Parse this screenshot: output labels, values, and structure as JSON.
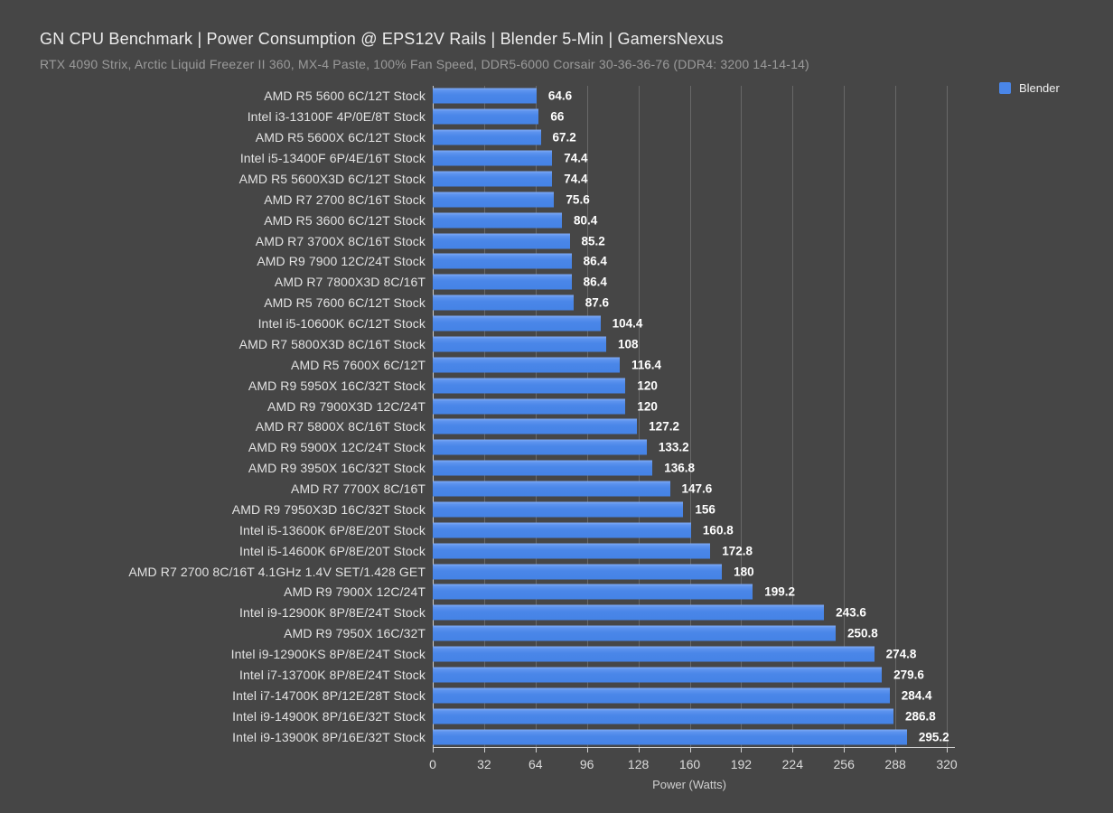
{
  "header": {
    "title": "GN CPU Benchmark | Power Consumption @ EPS12V Rails | Blender 5-Min | GamersNexus",
    "subtitle": "RTX 4090 Strix, Arctic Liquid Freezer II 360, MX-4 Paste, 100% Fan Speed, DDR5-6000 Corsair 30-36-36-76 (DDR4: 3200 14-14-14)"
  },
  "legend": {
    "label": "Blender"
  },
  "colors": {
    "background": "#464646",
    "bar": "#4a86e8",
    "title_text": "#ededed",
    "subtitle_text": "#9b9b9b",
    "label_text": "#e2e2e2",
    "value_text": "#ffffff",
    "gridline": "#686868",
    "axis": "#cfcfcf"
  },
  "chart_data": {
    "type": "bar",
    "orientation": "horizontal",
    "title": "GN CPU Benchmark | Power Consumption @ EPS12V Rails | Blender 5-Min | GamersNexus",
    "subtitle": "RTX 4090 Strix, Arctic Liquid Freezer II 360, MX-4 Paste, 100% Fan Speed, DDR5-6000 Corsair 30-36-36-76 (DDR4: 3200 14-14-14)",
    "xlabel": "Power (Watts)",
    "ylabel": "",
    "xlim": [
      0,
      320
    ],
    "xticks": [
      0,
      32,
      64,
      96,
      128,
      160,
      192,
      224,
      256,
      288,
      320
    ],
    "grid": true,
    "legend_position": "top-right",
    "series_name": "Blender",
    "categories": [
      "AMD R5 5600 6C/12T Stock",
      "Intel i3-13100F 4P/0E/8T Stock",
      "AMD R5 5600X 6C/12T Stock",
      "Intel i5-13400F 6P/4E/16T Stock",
      "AMD R5 5600X3D 6C/12T Stock",
      "AMD R7 2700 8C/16T Stock",
      "AMD R5 3600 6C/12T Stock",
      "AMD R7 3700X 8C/16T Stock",
      "AMD R9 7900 12C/24T Stock",
      "AMD R7 7800X3D 8C/16T",
      "AMD R5 7600 6C/12T Stock",
      "Intel i5-10600K 6C/12T Stock",
      "AMD R7 5800X3D 8C/16T Stock",
      "AMD R5 7600X 6C/12T",
      "AMD R9 5950X 16C/32T Stock",
      "AMD R9 7900X3D 12C/24T",
      "AMD R7 5800X 8C/16T Stock",
      "AMD R9 5900X 12C/24T Stock",
      "AMD R9 3950X 16C/32T Stock",
      "AMD R7 7700X 8C/16T",
      "AMD R9 7950X3D 16C/32T Stock",
      "Intel i5-13600K 6P/8E/20T Stock",
      "Intel i5-14600K 6P/8E/20T Stock",
      "AMD R7 2700 8C/16T 4.1GHz 1.4V SET/1.428 GET",
      "AMD R9 7900X 12C/24T",
      "Intel i9-12900K 8P/8E/24T Stock",
      "AMD R9 7950X 16C/32T",
      "Intel i9-12900KS 8P/8E/24T Stock",
      "Intel i7-13700K 8P/8E/24T Stock",
      "Intel i7-14700K 8P/12E/28T Stock",
      "Intel i9-14900K 8P/16E/32T Stock",
      "Intel i9-13900K 8P/16E/32T Stock"
    ],
    "values": [
      64.6,
      66,
      67.2,
      74.4,
      74.4,
      75.6,
      80.4,
      85.2,
      86.4,
      86.4,
      87.6,
      104.4,
      108,
      116.4,
      120,
      120,
      127.2,
      133.2,
      136.8,
      147.6,
      156,
      160.8,
      172.8,
      180,
      199.2,
      243.6,
      250.8,
      274.8,
      279.6,
      284.4,
      286.8,
      295.2
    ]
  }
}
